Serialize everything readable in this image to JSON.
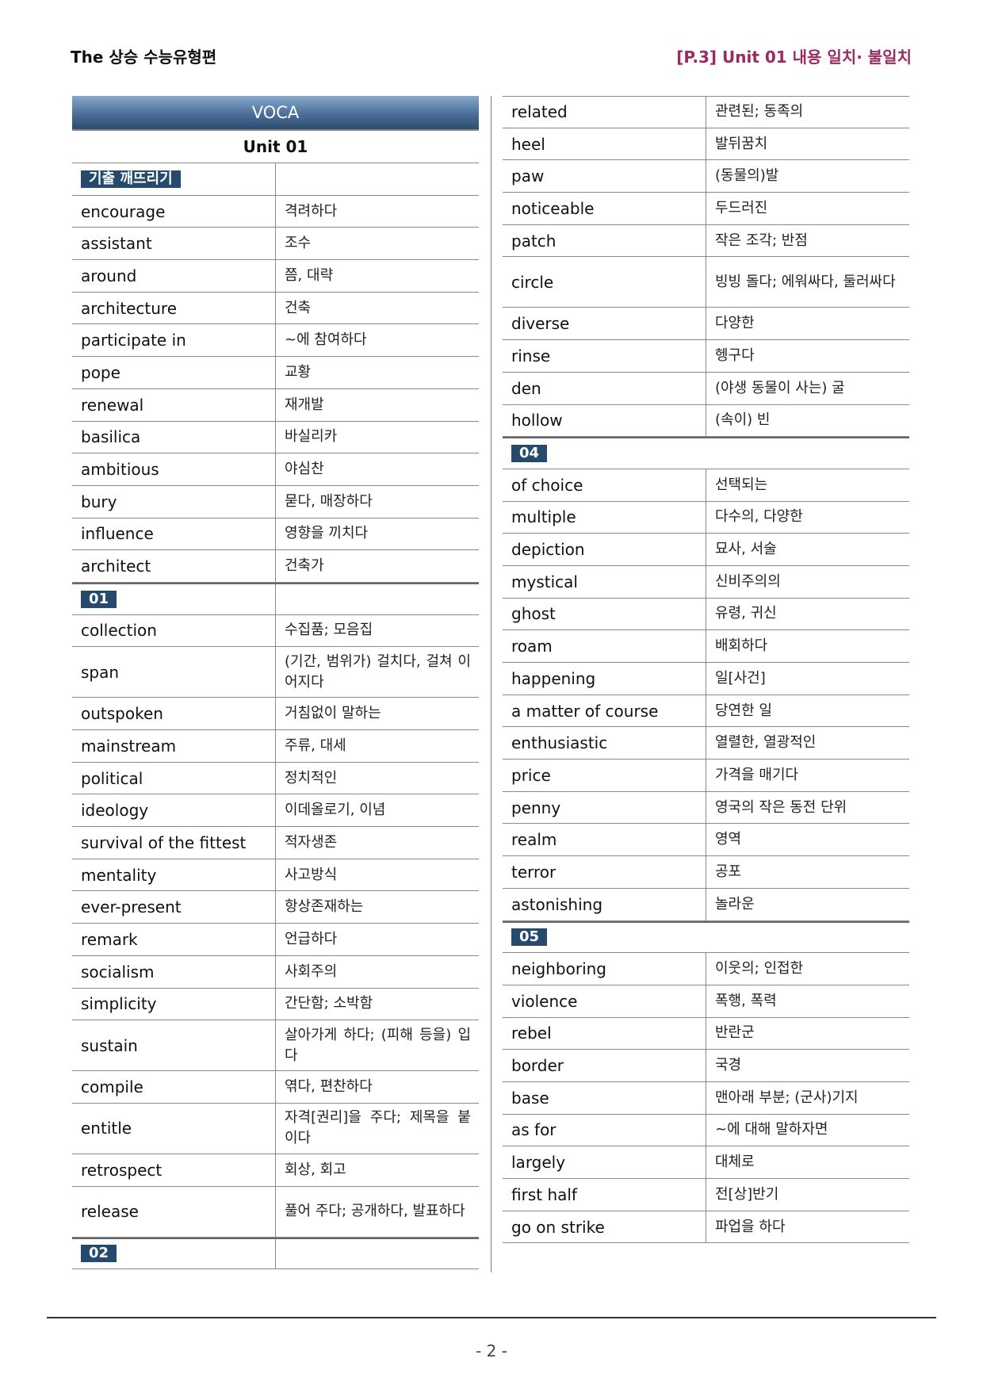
{
  "header": {
    "left": "The 상승 수능유형편",
    "right": "[P.3] Unit 01 내용 일치· 불일치"
  },
  "voca_title": "VOCA",
  "unit_title": "Unit 01",
  "left_rows": [
    {
      "section": "기출 깨뜨리기"
    },
    {
      "en": "encourage",
      "ko": "격려하다"
    },
    {
      "en": "assistant",
      "ko": "조수"
    },
    {
      "en": "around",
      "ko": "쯤, 대략"
    },
    {
      "en": "architecture",
      "ko": "건축"
    },
    {
      "en": "participate in",
      "ko": "~에 참여하다"
    },
    {
      "en": "pope",
      "ko": "교황"
    },
    {
      "en": "renewal",
      "ko": "재개발"
    },
    {
      "en": "basilica",
      "ko": "바실리카"
    },
    {
      "en": "ambitious",
      "ko": "야심찬"
    },
    {
      "en": "bury",
      "ko": "묻다, 매장하다"
    },
    {
      "en": "influence",
      "ko": "영향을 끼치다"
    },
    {
      "en": "architect",
      "ko": "건축가"
    },
    {
      "section": "01"
    },
    {
      "en": "collection",
      "ko": "수집품; 모음집"
    },
    {
      "en": "span",
      "ko": "(기간, 범위가) 걸치다, 걸쳐 이어지다",
      "tall": true
    },
    {
      "en": "outspoken",
      "ko": "거침없이 말하는"
    },
    {
      "en": "mainstream",
      "ko": "주류, 대세"
    },
    {
      "en": "political",
      "ko": "정치적인"
    },
    {
      "en": "ideology",
      "ko": "이데올로기, 이념"
    },
    {
      "en": "survival of the fittest",
      "ko": "적자생존"
    },
    {
      "en": "mentality",
      "ko": "사고방식"
    },
    {
      "en": "ever-present",
      "ko": "항상존재하는"
    },
    {
      "en": "remark",
      "ko": "언급하다"
    },
    {
      "en": "socialism",
      "ko": "사회주의"
    },
    {
      "en": "simplicity",
      "ko": "간단함; 소박함"
    },
    {
      "en": "sustain",
      "ko": "살아가게 하다; (피해 등을) 입다",
      "tall": true
    },
    {
      "en": "compile",
      "ko": "엮다, 편찬하다"
    },
    {
      "en": "entitle",
      "ko": "자격[권리]을 주다; 제목을 붙이다",
      "tall": true
    },
    {
      "en": "retrospect",
      "ko": "회상, 회고"
    },
    {
      "en": "release",
      "ko": "풀어 주다; 공개하다, 발표하다",
      "tall": true
    },
    {
      "section": "02"
    }
  ],
  "right_rows": [
    {
      "en": "related",
      "ko": "관련된; 동족의"
    },
    {
      "en": "heel",
      "ko": "발뒤꿈치"
    },
    {
      "en": "paw",
      "ko": "(동물의)발"
    },
    {
      "en": "noticeable",
      "ko": "두드러진"
    },
    {
      "en": "patch",
      "ko": "작은 조각; 반점"
    },
    {
      "en": "circle",
      "ko": "빙빙 돌다; 에워싸다, 둘러싸다",
      "tall": true
    },
    {
      "en": "diverse",
      "ko": "다양한"
    },
    {
      "en": "rinse",
      "ko": "헹구다"
    },
    {
      "en": "den",
      "ko": "(야생 동물이 사는) 굴"
    },
    {
      "en": "hollow",
      "ko": "(속이) 빈"
    },
    {
      "section": "04"
    },
    {
      "en": "of choice",
      "ko": "선택되는"
    },
    {
      "en": "multiple",
      "ko": "다수의, 다양한"
    },
    {
      "en": "depiction",
      "ko": "묘사, 서술"
    },
    {
      "en": "mystical",
      "ko": "신비주의의"
    },
    {
      "en": "ghost",
      "ko": "유령, 귀신"
    },
    {
      "en": "roam",
      "ko": "배회하다"
    },
    {
      "en": "happening",
      "ko": "일[사건]"
    },
    {
      "en": "a matter of course",
      "ko": "당연한 일"
    },
    {
      "en": "enthusiastic",
      "ko": "열렬한, 열광적인"
    },
    {
      "en": "price",
      "ko": "가격을 매기다"
    },
    {
      "en": "penny",
      "ko": "영국의 작은 동전 단위"
    },
    {
      "en": "realm",
      "ko": "영역"
    },
    {
      "en": "terror",
      "ko": "공포"
    },
    {
      "en": "astonishing",
      "ko": "놀라운"
    },
    {
      "section": "05"
    },
    {
      "en": "neighboring",
      "ko": "이웃의; 인접한"
    },
    {
      "en": "violence",
      "ko": "폭행, 폭력"
    },
    {
      "en": "rebel",
      "ko": "반란군"
    },
    {
      "en": "border",
      "ko": "국경"
    },
    {
      "en": "base",
      "ko": "맨아래 부분; (군사)기지"
    },
    {
      "en": "as for",
      "ko": "~에 대해 말하자면"
    },
    {
      "en": "largely",
      "ko": "대체로"
    },
    {
      "en": "first half",
      "ko": "전[상]반기"
    },
    {
      "en": "go on strike",
      "ko": "파업을 하다"
    }
  ],
  "footer": {
    "page": "- 2 -"
  }
}
